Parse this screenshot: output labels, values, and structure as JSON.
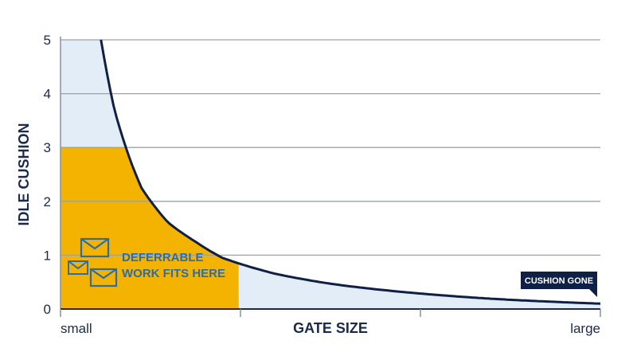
{
  "chart_data": {
    "type": "area",
    "title": "",
    "xlabel": "GATE SIZE",
    "ylabel": "IDLE CUSHION",
    "x_tick_labels": [
      "small",
      "large"
    ],
    "y_ticks": [
      0,
      1,
      2,
      3,
      4,
      5
    ],
    "ylim": [
      0,
      5
    ],
    "xlim": [
      0,
      1
    ],
    "grid": "horizontal",
    "series": [
      {
        "type": "line",
        "x": [
          0.075,
          0.1,
          0.15,
          0.2,
          0.25,
          0.3,
          0.4,
          0.5,
          0.6,
          0.7,
          0.8,
          0.9,
          1.0
        ],
        "values": [
          5.0,
          3.7,
          2.25,
          1.6,
          1.25,
          0.95,
          0.65,
          0.47,
          0.35,
          0.26,
          0.19,
          0.14,
          0.1
        ]
      }
    ],
    "highlight_region": {
      "x": [
        0,
        0.33
      ],
      "y": [
        0,
        3
      ]
    },
    "annotations": {
      "region_label_line1": "DEFERRABLE",
      "region_label_line2": "WORK FITS HERE",
      "callout": "CUSHION GONE"
    },
    "colors": {
      "curve": "#0f1f45",
      "under_curve_fill": "#e3edf8",
      "highlight_fill": "#f5b301",
      "grid": "#9aa3ad",
      "axis": "#1b2a4a",
      "callout_bg": "#0f1f45",
      "annotation_text": "#2e6da4",
      "envelope_icon": "#2e6da4"
    },
    "icons": [
      "envelope-icon",
      "envelope-icon",
      "envelope-icon"
    ]
  }
}
